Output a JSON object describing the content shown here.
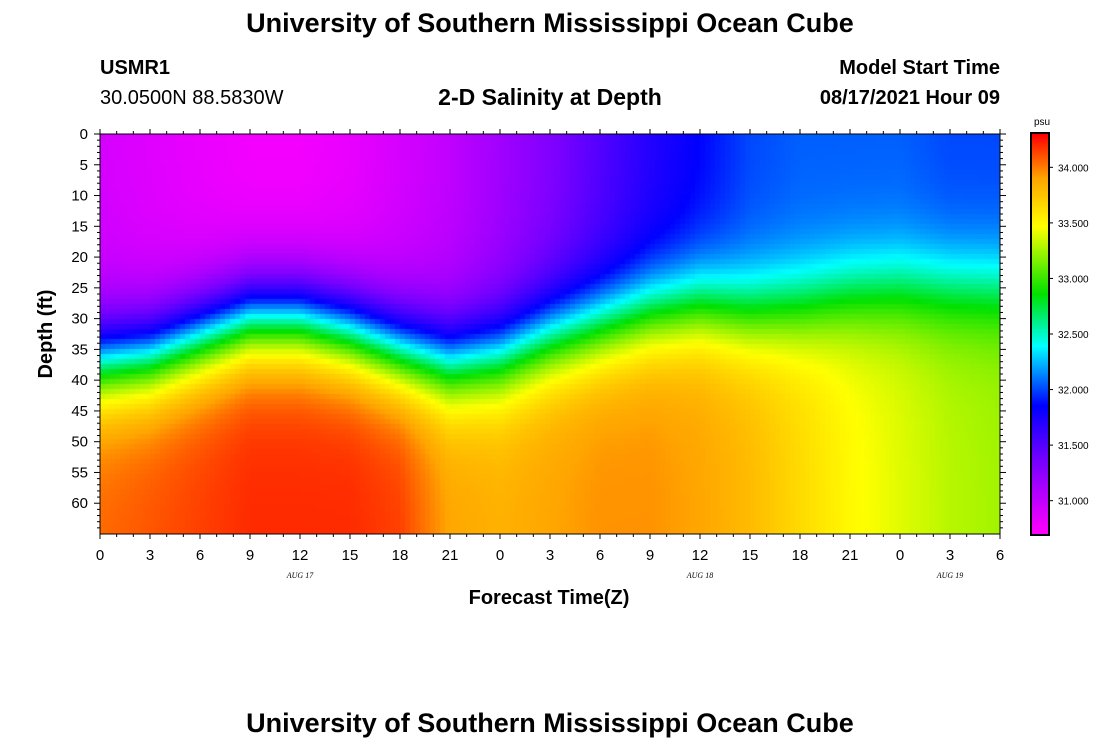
{
  "page": {
    "title": "University of Southern Mississippi Ocean Cube",
    "footer_title": "University of Southern Mississippi Ocean Cube",
    "station_id": "USMR1",
    "coordinates": "30.0500N  88.5830W",
    "model_start_label": "Model Start Time",
    "model_start_value": "08/17/2021 Hour 09"
  },
  "chart_data": {
    "type": "heatmap",
    "title": "2-D Salinity at Depth",
    "xlabel": "Forecast Time(Z)",
    "ylabel": "Depth (ft)",
    "x_range_hours": [
      0,
      54
    ],
    "ylim": [
      0,
      65
    ],
    "x_tick_labels": [
      "0",
      "3",
      "6",
      "9",
      "12",
      "15",
      "18",
      "21",
      "0",
      "3",
      "6",
      "9",
      "12",
      "15",
      "18",
      "21",
      "0",
      "3",
      "6"
    ],
    "x_tick_hours": [
      0,
      3,
      6,
      9,
      12,
      15,
      18,
      21,
      24,
      27,
      30,
      33,
      36,
      39,
      42,
      45,
      48,
      51,
      54
    ],
    "date_labels": [
      {
        "text": "AUG  17",
        "hour": 12
      },
      {
        "text": "AUG  18",
        "hour": 36
      },
      {
        "text": "AUG  19",
        "hour": 51
      }
    ],
    "y_ticks": [
      0,
      5,
      10,
      15,
      20,
      25,
      30,
      35,
      40,
      45,
      50,
      55,
      60
    ],
    "colorbar": {
      "unit": "psu",
      "min": 30.7,
      "max": 34.3,
      "tick_values": [
        31.0,
        31.5,
        32.0,
        32.5,
        33.0,
        33.5,
        34.0
      ],
      "tick_labels": [
        "31.000",
        "31.500",
        "32.000",
        "32.500",
        "33.000",
        "33.500",
        "34.000"
      ]
    },
    "series": [
      {
        "name": "halocline_depth_ft",
        "hours": [
          0,
          3,
          6,
          9,
          12,
          15,
          18,
          21,
          24,
          27,
          30,
          33,
          36,
          39,
          42,
          45,
          48,
          51,
          54
        ],
        "values": [
          37,
          36,
          33,
          30,
          30,
          32,
          35,
          37,
          36,
          33,
          31,
          29,
          28,
          29,
          28,
          26,
          25,
          25,
          25
        ]
      },
      {
        "name": "surface_salinity_psu",
        "hours": [
          0,
          3,
          6,
          9,
          12,
          15,
          18,
          21,
          24,
          27,
          30,
          33,
          36,
          39,
          42,
          45,
          48,
          51,
          54
        ],
        "values": [
          30.9,
          30.85,
          30.8,
          30.75,
          30.75,
          30.8,
          30.9,
          31.0,
          31.15,
          31.3,
          31.5,
          31.7,
          31.85,
          32.0,
          32.05,
          32.05,
          32.05,
          32.0,
          32.0
        ]
      },
      {
        "name": "bottom_salinity_psu",
        "hours": [
          0,
          3,
          6,
          9,
          12,
          15,
          18,
          21,
          24,
          27,
          30,
          33,
          36,
          39,
          42,
          45,
          48,
          51,
          54
        ],
        "values": [
          34.05,
          34.1,
          34.15,
          34.2,
          34.2,
          34.2,
          34.15,
          33.9,
          33.85,
          33.9,
          33.95,
          33.95,
          33.9,
          33.8,
          33.65,
          33.5,
          33.4,
          33.3,
          33.25
        ]
      }
    ]
  }
}
